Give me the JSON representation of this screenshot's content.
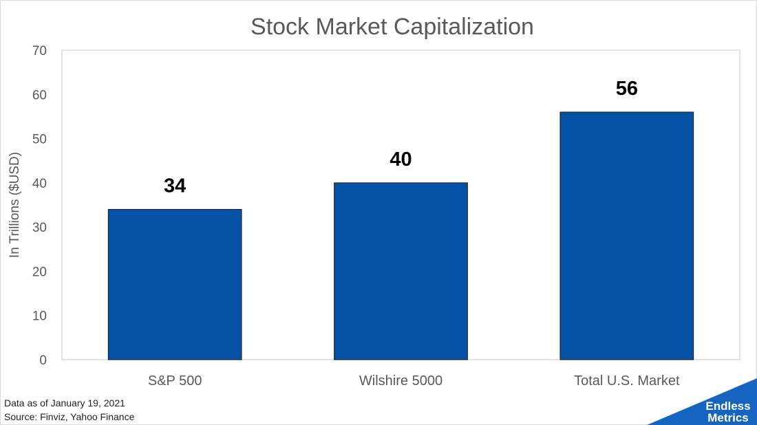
{
  "chart_data": {
    "type": "bar",
    "title": "Stock Market Capitalization",
    "xlabel": "",
    "ylabel": "In Trillions ($USD)",
    "categories": [
      "S&P 500",
      "Wilshire 5000",
      "Total U.S. Market"
    ],
    "values": [
      34,
      40,
      56
    ],
    "data_labels": [
      "34",
      "40",
      "56"
    ],
    "ylim": [
      0,
      70
    ],
    "yticks": [
      0,
      10,
      20,
      30,
      40,
      50,
      60,
      70
    ],
    "grid": false,
    "legend": "none",
    "bar_color": "#0451A5"
  },
  "footnote": {
    "date": "Data as of January 19, 2021",
    "source": "Source: Finviz, Yahoo Finance"
  },
  "logo": {
    "line1": "Endless",
    "line2": "Metrics",
    "color": "#1565C0"
  }
}
